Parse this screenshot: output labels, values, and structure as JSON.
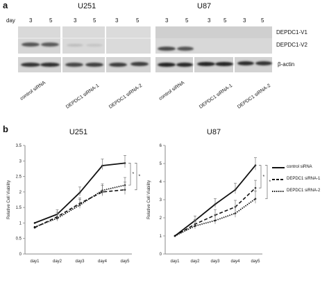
{
  "panel_a": {
    "letter": "a",
    "day_label": "day",
    "cell_lines": [
      "U251",
      "U87"
    ],
    "day_values": [
      "3",
      "5"
    ],
    "band_labels": [
      "DEPDC1-V1",
      "DEPDC1-V2",
      "β-actin"
    ],
    "lane_labels": [
      "control siRNA",
      "DEPDC1 siRNA-1",
      "DEPDC1 siRNA-2"
    ]
  },
  "panel_b": {
    "letter": "b",
    "legend": [
      "control siRNA",
      "DEPDC1 siRNA-1",
      "DEPDC1 siRNA-2"
    ],
    "significance": "*"
  },
  "chart_data": [
    {
      "type": "line",
      "title": "U251",
      "xlabel": "",
      "ylabel": "Relative Cell Viability",
      "categories": [
        "day1",
        "day2",
        "day3",
        "day4",
        "day5"
      ],
      "ylim": [
        0,
        3.5
      ],
      "yticks": [
        "0",
        "0.5",
        "1",
        "1.5",
        "2",
        "2.5",
        "3",
        "3.5"
      ],
      "series": [
        {
          "name": "control siRNA",
          "values": [
            1.0,
            1.28,
            1.98,
            2.85,
            2.93
          ]
        },
        {
          "name": "DEPDC1 siRNA-1",
          "values": [
            0.85,
            1.2,
            1.63,
            2.0,
            2.07
          ]
        },
        {
          "name": "DEPDC1 siRNA-2",
          "values": [
            0.87,
            1.15,
            1.58,
            2.05,
            2.22
          ]
        }
      ],
      "significance": [
        {
          "between": [
            "control siRNA",
            "DEPDC1 siRNA-2"
          ],
          "at": "day5",
          "label": "*"
        },
        {
          "between": [
            "control siRNA",
            "DEPDC1 siRNA-1"
          ],
          "at": "day5",
          "label": "*"
        }
      ]
    },
    {
      "type": "line",
      "title": "U87",
      "xlabel": "",
      "ylabel": "Relative Cell Viability",
      "categories": [
        "day1",
        "day2",
        "day3",
        "day4",
        "day5"
      ],
      "ylim": [
        0,
        6
      ],
      "yticks": [
        "0",
        "1",
        "2",
        "3",
        "4",
        "5",
        "6"
      ],
      "series": [
        {
          "name": "control siRNA",
          "values": [
            1.0,
            1.85,
            2.75,
            3.55,
            4.9
          ]
        },
        {
          "name": "DEPDC1 siRNA-1",
          "values": [
            1.0,
            1.65,
            2.15,
            2.6,
            3.65
          ]
        },
        {
          "name": "DEPDC1 siRNA-2",
          "values": [
            1.0,
            1.55,
            1.85,
            2.25,
            3.05
          ]
        }
      ],
      "significance": [
        {
          "between": [
            "control siRNA",
            "DEPDC1 siRNA-1"
          ],
          "at": "day5",
          "label": "*"
        },
        {
          "between": [
            "control siRNA",
            "DEPDC1 siRNA-2"
          ],
          "at": "day5",
          "label": "*"
        }
      ]
    }
  ]
}
